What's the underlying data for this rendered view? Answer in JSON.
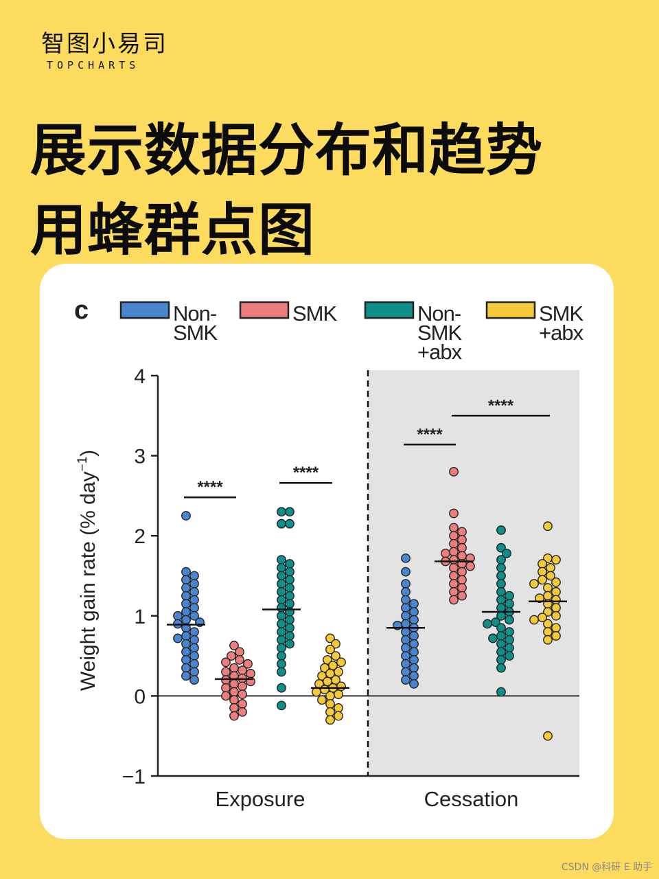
{
  "brand": {
    "name_cn": "智图小易司",
    "name_en": "TOPCHARTS"
  },
  "headline": {
    "line1": "展示数据分布和趋势",
    "line2": "用蜂群点图"
  },
  "watermark": "CSDN @科研 E 助手",
  "colors": {
    "background": "#fcdb5e",
    "card": "#ffffff",
    "shade": "#e3e3e3",
    "nonsmk": "#4a86cf",
    "smk": "#ee7d7d",
    "nonsmk_abx": "#0e8f8a",
    "smk_abx": "#f4c93b"
  },
  "chart_data": {
    "type": "scatter",
    "subtype": "beeswarm",
    "panel_label": "c",
    "ylabel": "Weight gain rate (% day",
    "ylabel_sup": "−1",
    "ylabel_close": ")",
    "ylim": [
      -1,
      4
    ],
    "yticks": [
      "−1",
      "0",
      "1",
      "2",
      "3",
      "4"
    ],
    "legend": [
      {
        "lines": [
          "Non-",
          "SMK"
        ],
        "color": "#4a86cf"
      },
      {
        "lines": [
          "SMK"
        ],
        "color": "#ee7d7d"
      },
      {
        "lines": [
          "Non-",
          "SMK",
          "+abx"
        ],
        "color": "#0e8f8a"
      },
      {
        "lines": [
          "SMK",
          "+abx"
        ],
        "color": "#f4c93b"
      }
    ],
    "phases": [
      "Exposure",
      "Cessation"
    ],
    "shaded_phase": "Cessation",
    "significance": [
      {
        "phase": 0,
        "from": 0,
        "to": 1,
        "label": "****",
        "y": 2.48
      },
      {
        "phase": 0,
        "from": 2,
        "to": 3,
        "label": "****",
        "y": 2.66
      },
      {
        "phase": 1,
        "from": 0,
        "to": 1,
        "label": "****",
        "y": 3.14
      },
      {
        "phase": 1,
        "from": 1,
        "to": 3,
        "label": "****",
        "y": 3.5
      }
    ],
    "series": [
      {
        "phase": 0,
        "group": 0,
        "mean": 0.89,
        "values": [
          2.25,
          1.55,
          1.5,
          1.45,
          1.4,
          1.35,
          1.3,
          1.25,
          1.2,
          1.15,
          1.1,
          1.05,
          1.0,
          1.0,
          0.95,
          0.92,
          0.9,
          0.85,
          0.8,
          0.75,
          0.72,
          0.7,
          0.65,
          0.6,
          0.55,
          0.5,
          0.45,
          0.4,
          0.35,
          0.3,
          0.25,
          0.2
        ]
      },
      {
        "phase": 0,
        "group": 1,
        "mean": 0.21,
        "values": [
          0.63,
          0.55,
          0.5,
          0.45,
          0.42,
          0.4,
          0.35,
          0.32,
          0.3,
          0.28,
          0.25,
          0.22,
          0.2,
          0.18,
          0.15,
          0.12,
          0.1,
          0.05,
          0.02,
          0.0,
          -0.05,
          -0.1,
          -0.15,
          -0.2,
          -0.25
        ]
      },
      {
        "phase": 0,
        "group": 2,
        "mean": 1.08,
        "values": [
          2.3,
          2.3,
          2.15,
          2.15,
          1.7,
          1.65,
          1.6,
          1.55,
          1.5,
          1.45,
          1.4,
          1.35,
          1.3,
          1.25,
          1.2,
          1.15,
          1.1,
          1.05,
          1.0,
          0.95,
          0.9,
          0.85,
          0.8,
          0.75,
          0.7,
          0.65,
          0.6,
          0.5,
          0.4,
          0.3,
          0.1,
          -0.12
        ]
      },
      {
        "phase": 0,
        "group": 3,
        "mean": 0.1,
        "values": [
          0.72,
          0.65,
          0.58,
          0.5,
          0.45,
          0.42,
          0.38,
          0.35,
          0.3,
          0.28,
          0.25,
          0.2,
          0.18,
          0.15,
          0.12,
          0.1,
          0.08,
          0.05,
          0.02,
          0.0,
          -0.05,
          -0.1,
          -0.15,
          -0.2,
          -0.25,
          -0.3
        ]
      },
      {
        "phase": 1,
        "group": 0,
        "mean": 0.85,
        "values": [
          1.72,
          1.55,
          1.4,
          1.3,
          1.2,
          1.15,
          1.1,
          1.05,
          1.0,
          0.95,
          0.9,
          0.88,
          0.85,
          0.8,
          0.75,
          0.7,
          0.65,
          0.6,
          0.55,
          0.5,
          0.45,
          0.4,
          0.35,
          0.3,
          0.25,
          0.2,
          0.15
        ]
      },
      {
        "phase": 1,
        "group": 1,
        "mean": 1.68,
        "values": [
          2.8,
          2.28,
          2.1,
          2.05,
          2.0,
          1.95,
          1.9,
          1.85,
          1.8,
          1.78,
          1.75,
          1.72,
          1.7,
          1.68,
          1.65,
          1.62,
          1.6,
          1.55,
          1.5,
          1.45,
          1.4,
          1.35,
          1.3,
          1.25,
          1.2
        ]
      },
      {
        "phase": 1,
        "group": 2,
        "mean": 1.05,
        "values": [
          2.07,
          1.85,
          1.78,
          1.7,
          1.6,
          1.5,
          1.4,
          1.3,
          1.25,
          1.2,
          1.15,
          1.1,
          1.05,
          1.0,
          0.95,
          0.92,
          0.9,
          0.85,
          0.8,
          0.75,
          0.72,
          0.7,
          0.65,
          0.6,
          0.55,
          0.5,
          0.45,
          0.35,
          0.05
        ]
      },
      {
        "phase": 1,
        "group": 3,
        "mean": 1.18,
        "values": [
          2.12,
          1.72,
          1.7,
          1.65,
          1.6,
          1.55,
          1.5,
          1.45,
          1.42,
          1.4,
          1.35,
          1.3,
          1.25,
          1.22,
          1.2,
          1.15,
          1.1,
          1.05,
          1.0,
          0.98,
          0.95,
          0.9,
          0.85,
          0.8,
          0.75,
          0.7,
          -0.5
        ]
      }
    ]
  }
}
